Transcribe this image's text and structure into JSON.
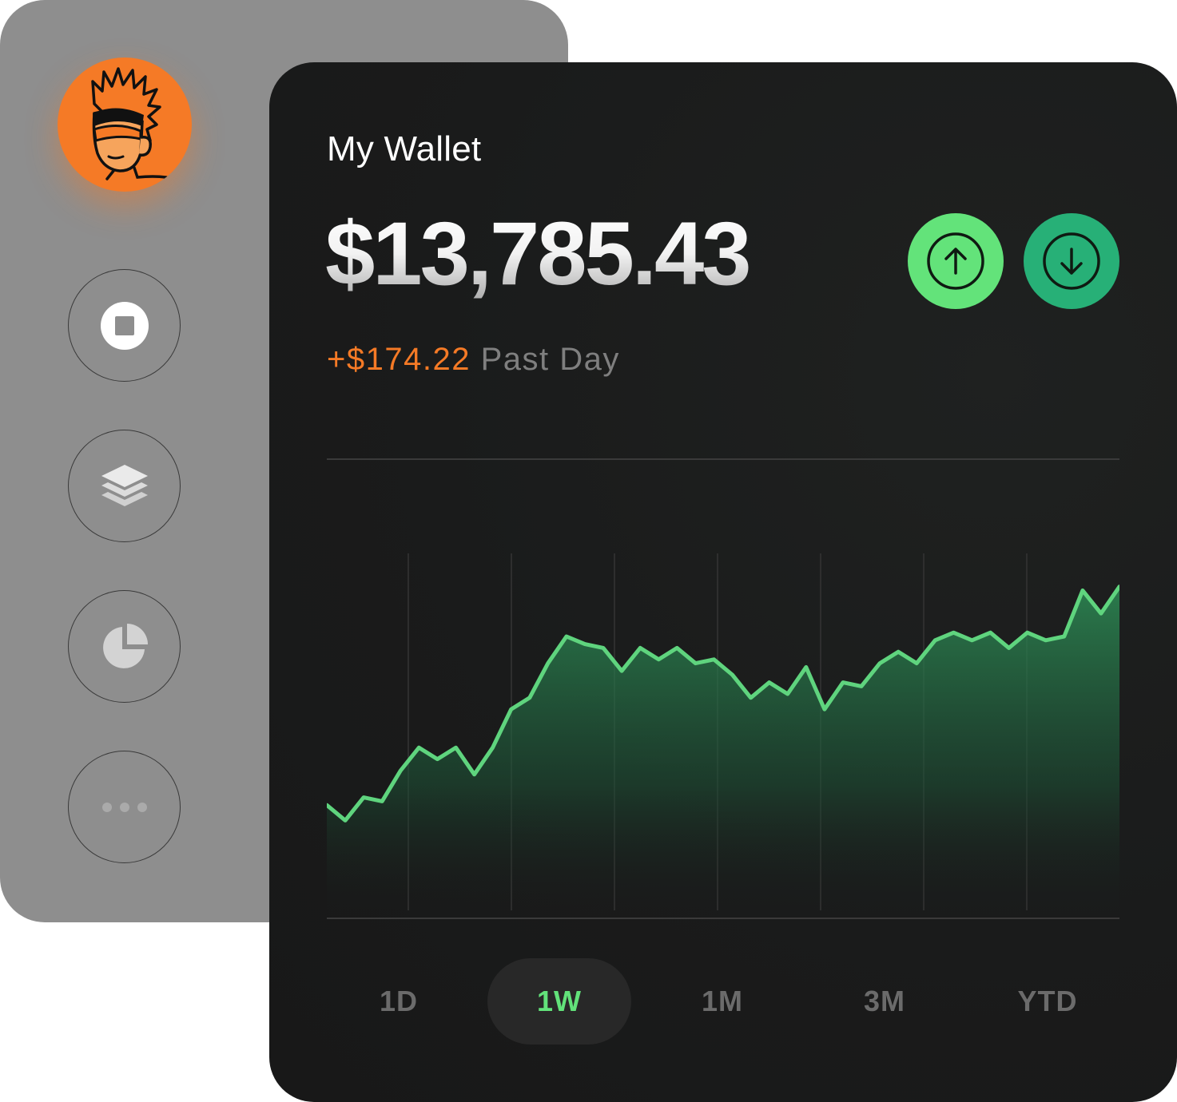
{
  "sidebar": {
    "avatar_name": "avatar",
    "items": [
      {
        "name": "stop-icon"
      },
      {
        "name": "layers-icon"
      },
      {
        "name": "pie-chart-icon"
      },
      {
        "name": "more-icon"
      }
    ]
  },
  "wallet": {
    "title": "My Wallet",
    "balance": "$13,785.43",
    "change_amount": "+$174.22",
    "change_period": "Past Day",
    "actions": [
      {
        "name": "send-button",
        "icon": "arrow-up-icon"
      },
      {
        "name": "receive-button",
        "icon": "arrow-down-icon"
      }
    ]
  },
  "colors": {
    "accent_green": "#63e37a",
    "deep_green": "#27b077",
    "orange": "#f57a26",
    "card_dark": "#1a1b1b",
    "sidebar_grey": "#8e8e8e"
  },
  "chart_data": {
    "type": "area",
    "title": "",
    "xlabel": "",
    "ylabel": "",
    "ylim": [
      0,
      100
    ],
    "grid": "vertical",
    "values": [
      26,
      22,
      28,
      27,
      35,
      41,
      38,
      41,
      34,
      41,
      51,
      54,
      63,
      70,
      68,
      67,
      61,
      67,
      64,
      67,
      63,
      64,
      60,
      54,
      58,
      55,
      62,
      51,
      58,
      57,
      63,
      66,
      63,
      69,
      71,
      69,
      71,
      67,
      71,
      69,
      70,
      82,
      76,
      83
    ]
  },
  "timeframes": {
    "selected": "1W",
    "items": [
      {
        "label": "1D"
      },
      {
        "label": "1W"
      },
      {
        "label": "1M"
      },
      {
        "label": "3M"
      },
      {
        "label": "YTD"
      }
    ]
  }
}
